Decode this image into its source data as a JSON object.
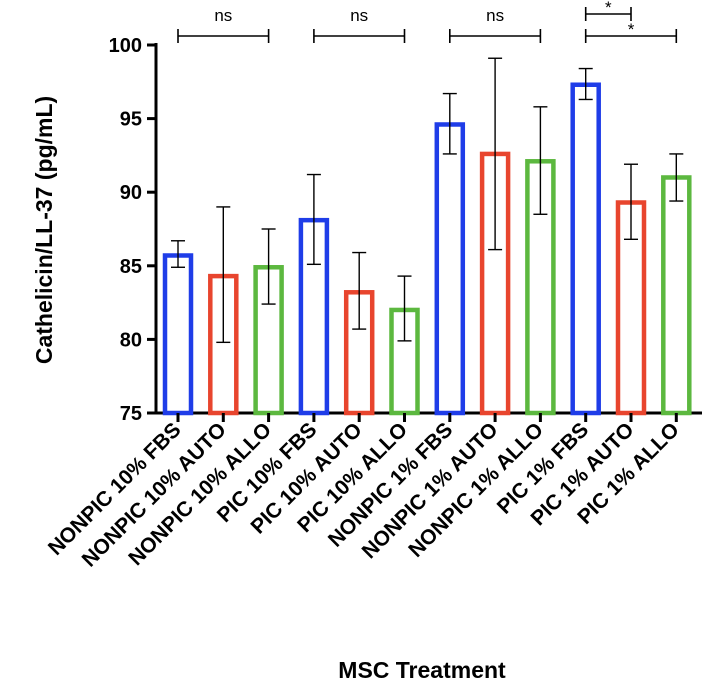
{
  "chart_data": {
    "type": "bar",
    "xlabel": "MSC Treatment",
    "ylabel": "Cathelicin/LL-37 (pg/mL)",
    "ylim": [
      75,
      100
    ],
    "yticks": [
      75,
      80,
      85,
      90,
      95,
      100
    ],
    "categories": [
      "NONPIC 10% FBS",
      "NONPIC 10% AUTO",
      "NONPIC 10% ALLO",
      "PIC 10% FBS",
      "PIC 10% AUTO",
      "PIC 10% ALLO",
      "NONPIC 1% FBS",
      "NONPIC 1% AUTO",
      "NONPIC 1% ALLO",
      "PIC 1% FBS",
      "PIC 1% AUTO",
      "PIC 1% ALLO"
    ],
    "values": [
      85.7,
      84.3,
      84.9,
      88.1,
      83.2,
      82.0,
      94.6,
      92.6,
      92.1,
      97.3,
      89.3,
      91.0
    ],
    "err_low": [
      84.9,
      79.8,
      82.4,
      85.1,
      80.7,
      79.9,
      92.6,
      86.1,
      88.5,
      96.3,
      86.8,
      89.4
    ],
    "err_high": [
      86.7,
      89.0,
      87.5,
      91.2,
      85.9,
      84.3,
      96.7,
      99.1,
      95.8,
      98.4,
      91.9,
      92.6
    ],
    "series_colors": [
      "#1f3de8",
      "#e8452e",
      "#5cb83f"
    ],
    "series_names": [
      "FBS",
      "AUTO",
      "ALLO"
    ],
    "significance": [
      {
        "from": 0,
        "to": 2,
        "label": "ns",
        "level": 0
      },
      {
        "from": 3,
        "to": 5,
        "label": "ns",
        "level": 0
      },
      {
        "from": 6,
        "to": 8,
        "label": "ns",
        "level": 0
      },
      {
        "from": 9,
        "to": 10,
        "label": "*",
        "level": 1
      },
      {
        "from": 9,
        "to": 11,
        "label": "*",
        "level": 0
      }
    ]
  }
}
